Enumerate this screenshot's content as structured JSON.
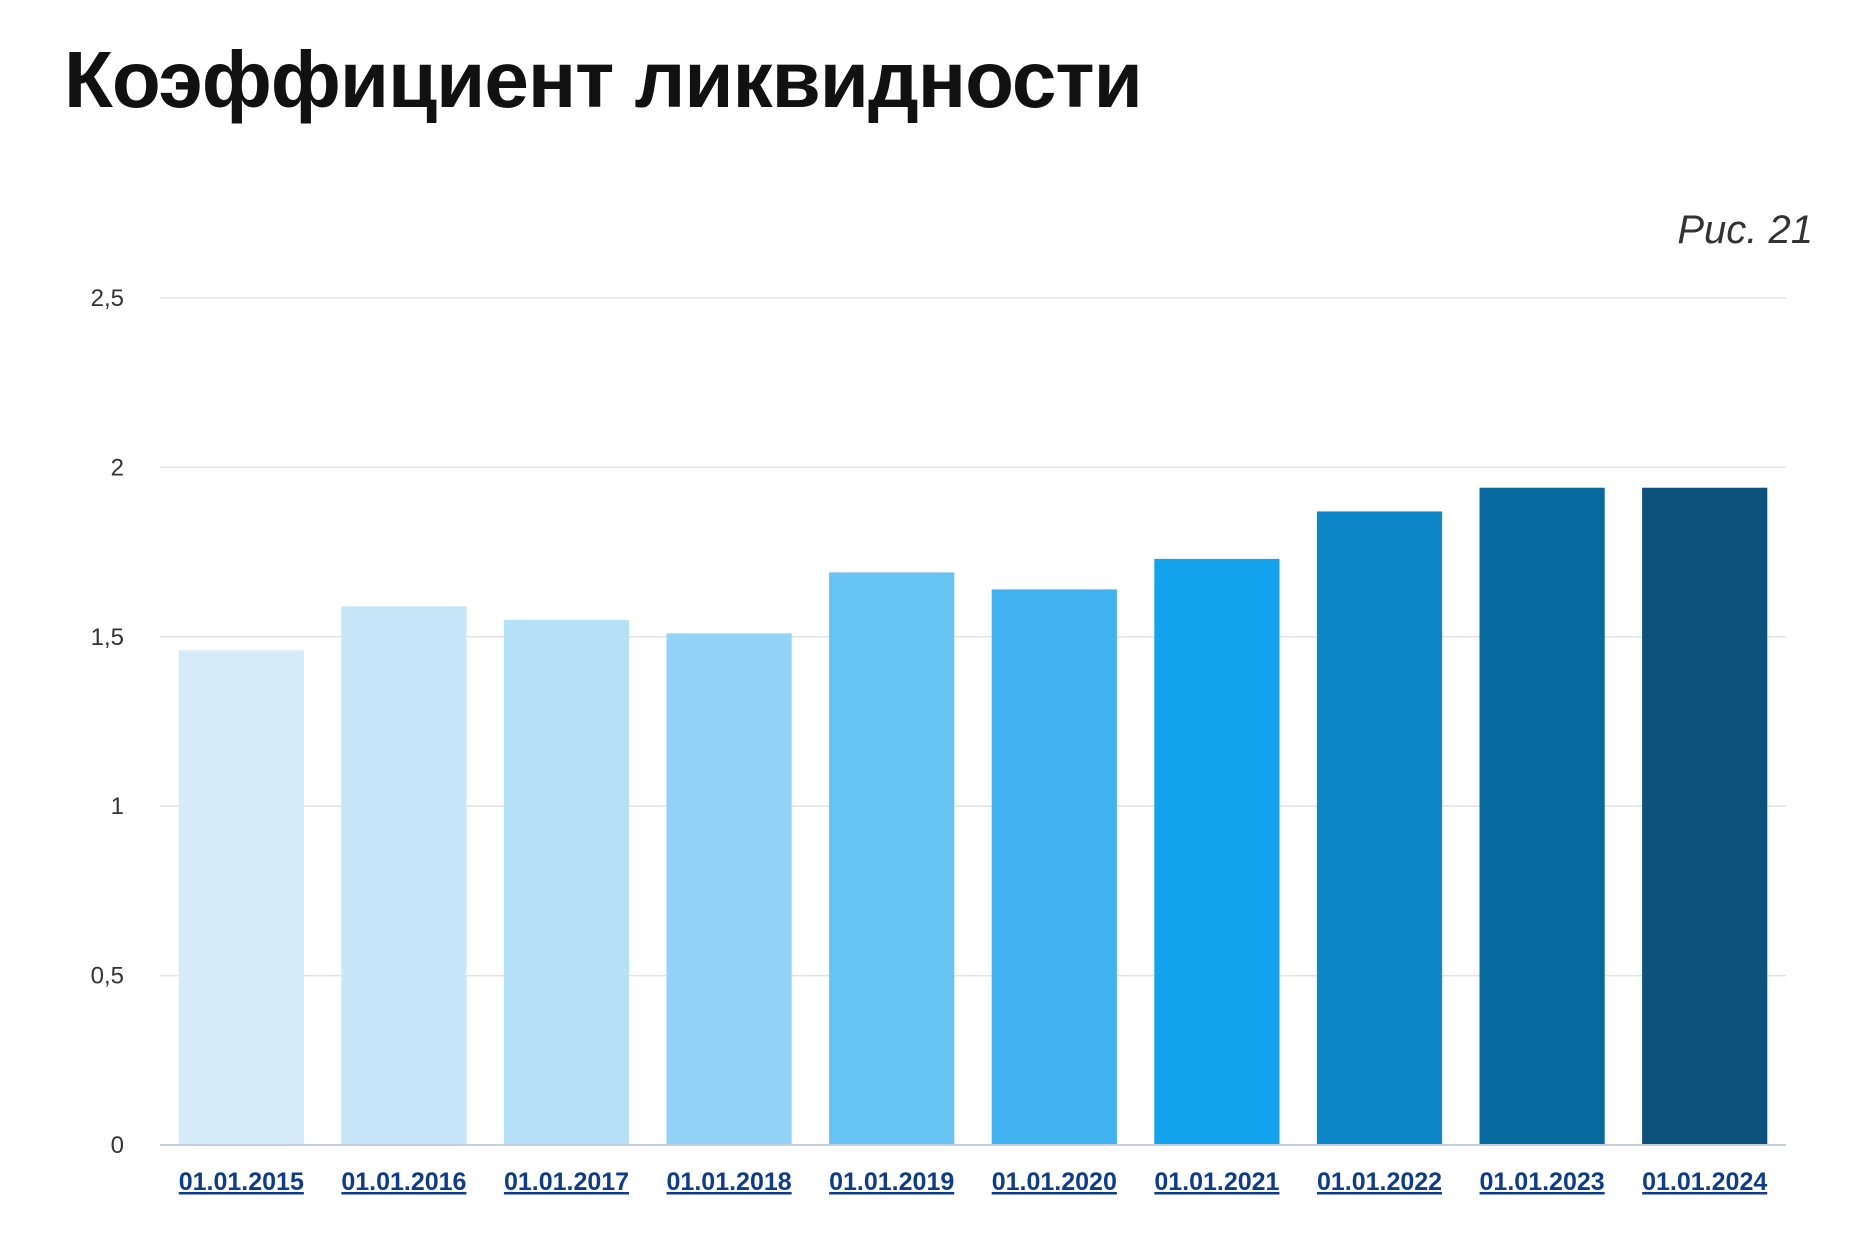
{
  "page": {
    "title": "Коэффициент ликвидности",
    "figure_label": "Рис. 21"
  },
  "chart_data": {
    "type": "bar",
    "title": "Коэффициент ликвидности",
    "xlabel": "",
    "ylabel": "",
    "ylim": [
      0,
      2.5
    ],
    "yticks": [
      0,
      0.5,
      1,
      1.5,
      2,
      2.5
    ],
    "ytick_labels": [
      "0",
      "0,5",
      "1",
      "1,5",
      "2",
      "2,5"
    ],
    "grid": true,
    "legend": "none",
    "categories": [
      "01.01.2015",
      "01.01.2016",
      "01.01.2017",
      "01.01.2018",
      "01.01.2019",
      "01.01.2020",
      "01.01.2021",
      "01.01.2022",
      "01.01.2023",
      "01.01.2024"
    ],
    "values": [
      1.46,
      1.59,
      1.55,
      1.51,
      1.69,
      1.64,
      1.73,
      1.87,
      1.94,
      1.94
    ],
    "colors": [
      "#d6ebfa",
      "#c7e6fa",
      "#b5e0f8",
      "#92d2f7",
      "#67c3f4",
      "#40b3f0",
      "#12a3ec",
      "#0d87c8",
      "#066a9e",
      "#0c527c"
    ],
    "category_label_color": "#0d3c8f"
  }
}
